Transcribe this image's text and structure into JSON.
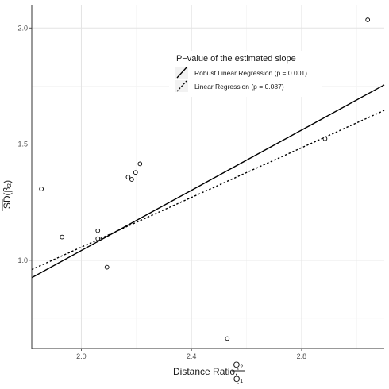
{
  "chart_data": {
    "type": "scatter",
    "xlabel": {
      "prefix": "Distance Ratio,",
      "numerator": "Q₂",
      "denominator": "Q₁"
    },
    "ylabel": "SD(β₂)",
    "xlim": [
      1.82,
      3.1
    ],
    "ylim": [
      0.62,
      2.1
    ],
    "x_ticks": [
      2.0,
      2.4,
      2.8
    ],
    "x_tick_labels": [
      "2.0",
      "2.4",
      "2.8"
    ],
    "y_ticks": [
      1.0,
      1.5,
      2.0
    ],
    "y_tick_labels": [
      "1.0",
      "1.5",
      "2.0"
    ],
    "grid": true,
    "points": [
      {
        "x": 1.855,
        "y": 1.307
      },
      {
        "x": 1.93,
        "y": 1.1
      },
      {
        "x": 2.06,
        "y": 1.127
      },
      {
        "x": 2.06,
        "y": 1.093
      },
      {
        "x": 2.093,
        "y": 0.97
      },
      {
        "x": 2.17,
        "y": 1.358
      },
      {
        "x": 2.183,
        "y": 1.348
      },
      {
        "x": 2.197,
        "y": 1.378
      },
      {
        "x": 2.213,
        "y": 1.415
      },
      {
        "x": 2.53,
        "y": 0.663
      },
      {
        "x": 2.885,
        "y": 1.523
      },
      {
        "x": 3.04,
        "y": 2.035
      }
    ],
    "series": [
      {
        "name": "Robust Linear Regression (p = 0.001)",
        "style": "solid",
        "x": [
          1.82,
          3.1
        ],
        "y": [
          0.925,
          1.755
        ]
      },
      {
        "name": "Linear Regression (p = 0.087)",
        "style": "dotted",
        "x": [
          1.82,
          3.1
        ],
        "y": [
          0.96,
          1.645
        ]
      }
    ],
    "legend": {
      "title": "P−value of the estimated slope",
      "placement": "top-right"
    }
  }
}
